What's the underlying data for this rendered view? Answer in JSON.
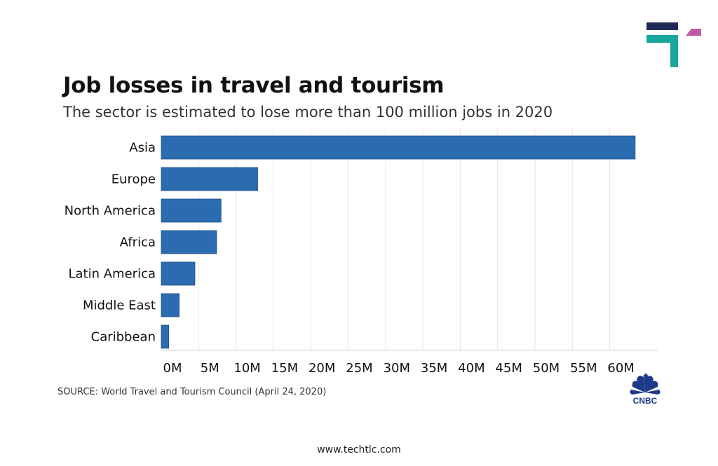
{
  "chart_data": {
    "type": "bar",
    "orientation": "horizontal",
    "title": "Job losses in travel and tourism",
    "subtitle": "The sector is estimated to lose more than 100 million jobs in 2020",
    "categories": [
      "Asia",
      "Europe",
      "North America",
      "Africa",
      "Latin America",
      "Middle East",
      "Caribbean"
    ],
    "values": [
      63.4,
      12.9,
      8.0,
      7.4,
      4.5,
      2.4,
      1.0
    ],
    "unit": "jobs (millions)",
    "xlim": [
      0,
      65
    ],
    "xticks": [
      0,
      5,
      10,
      15,
      20,
      25,
      30,
      35,
      40,
      45,
      50,
      55,
      60
    ],
    "xtick_labels": [
      "0M",
      "5M",
      "10M",
      "15M",
      "20M",
      "25M",
      "30M",
      "35M",
      "40M",
      "45M",
      "50M",
      "55M",
      "60M"
    ],
    "grid": "vertical",
    "legend": "none",
    "bar_color": "#2b6cb0"
  },
  "source": "SOURCE: World Travel and Tourism Council (April 24, 2020)",
  "brand": "CNBC",
  "footer": "www.techtlc.com",
  "colors": {
    "logo_navy": "#1f2a55",
    "logo_teal": "#19a79c",
    "logo_pink": "#c25aa6"
  }
}
